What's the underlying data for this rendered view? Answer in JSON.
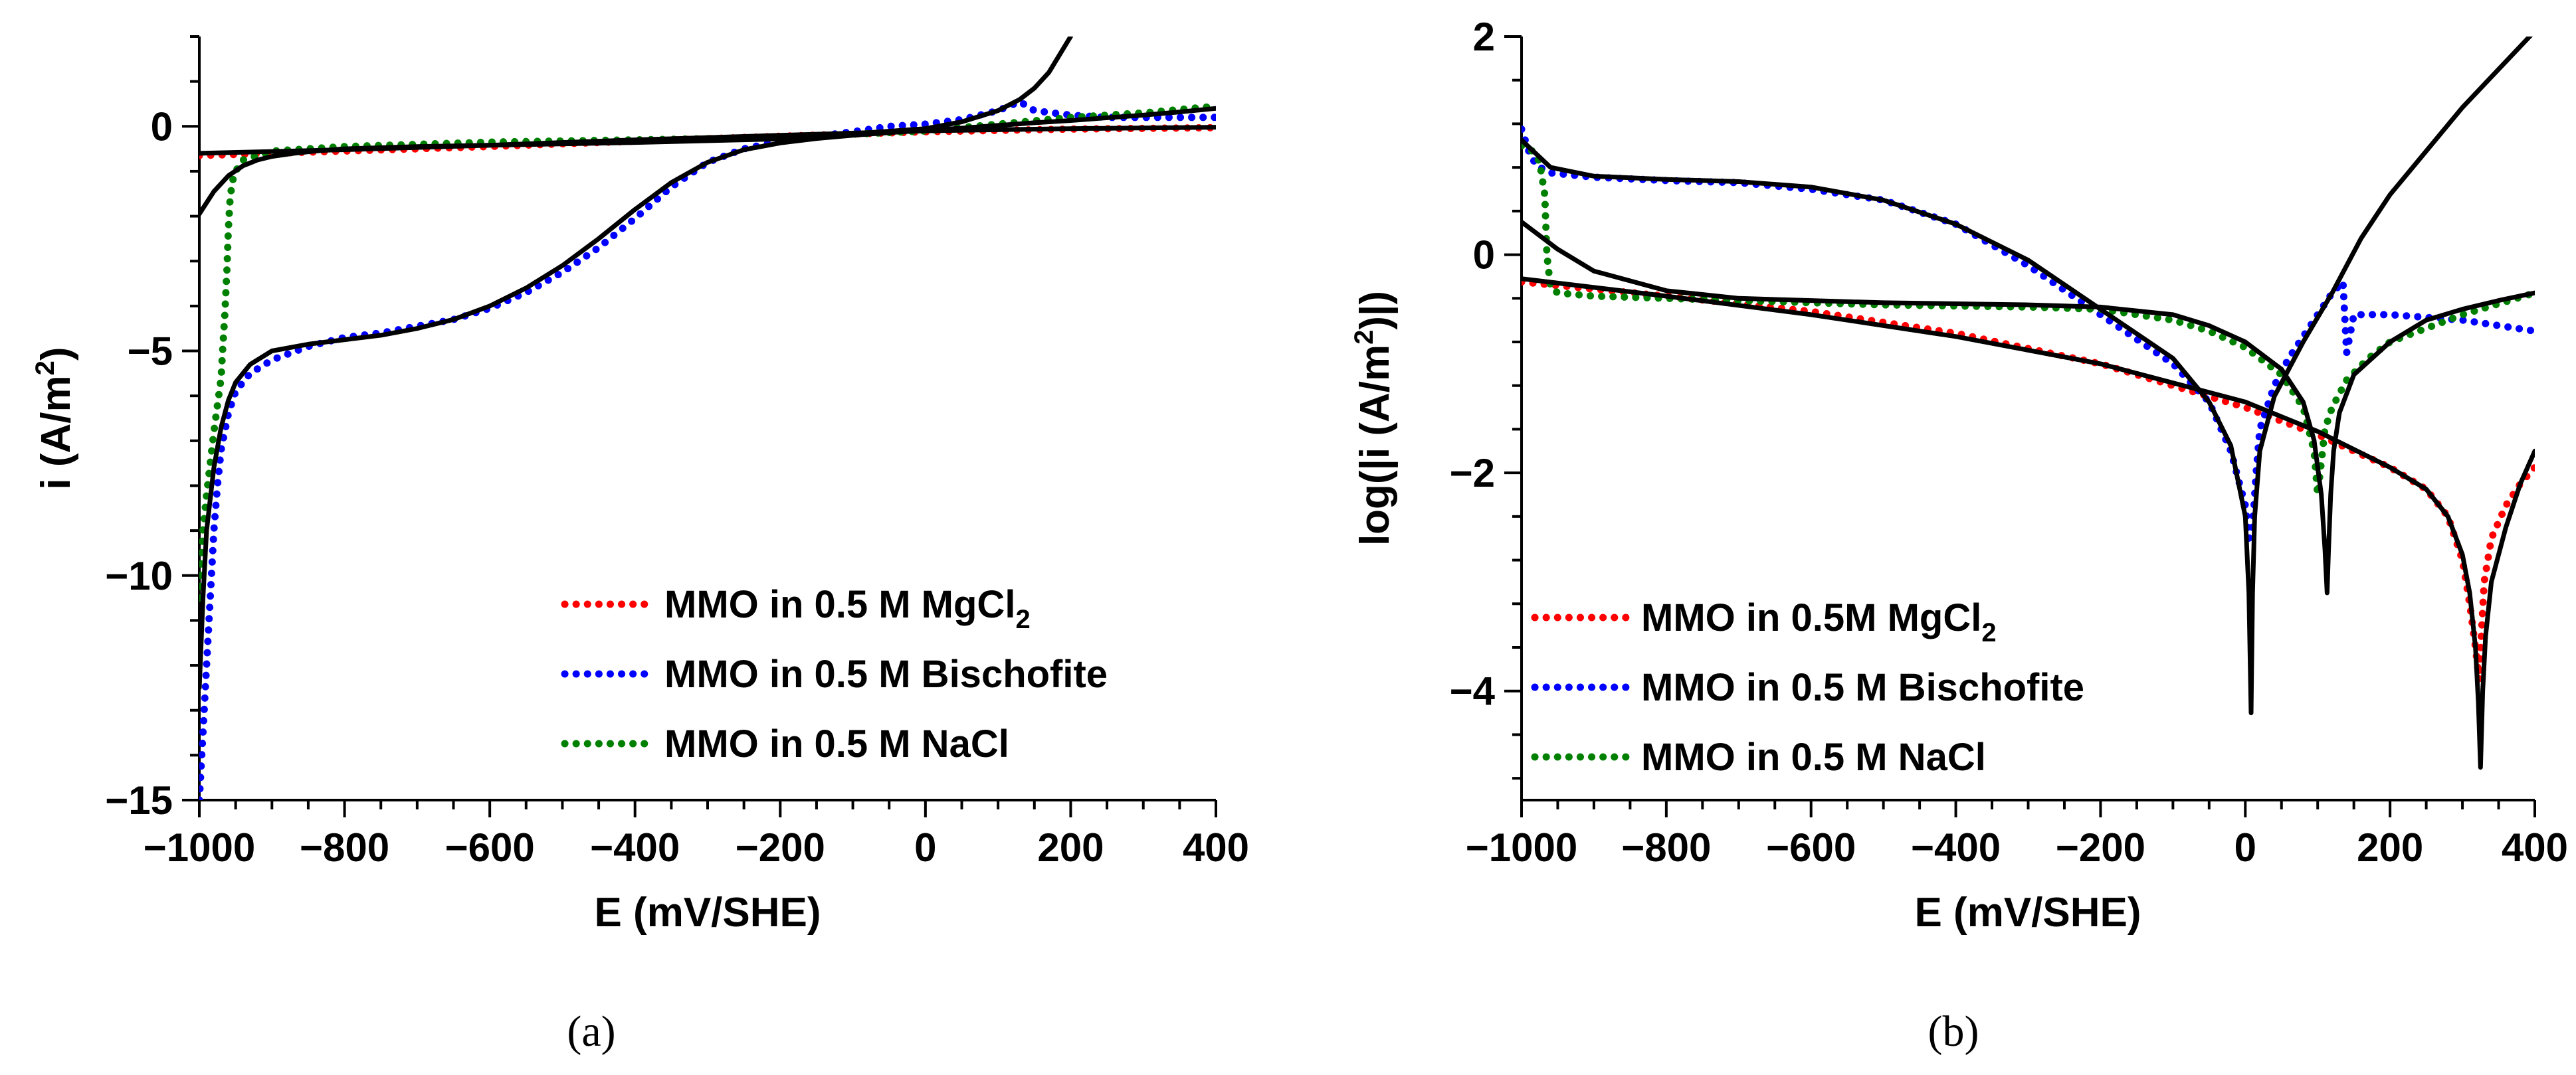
{
  "chart_data": [
    {
      "type": "line",
      "panel_label": "(a)",
      "xlabel": "E  (mV/SHE)",
      "ylabel": "i  (A/m²)",
      "ylabel_parts": {
        "main": "i  (A/m",
        "sup": "2",
        "tail": ")"
      },
      "xlim": [
        -1000,
        400
      ],
      "ylim": [
        -15,
        2
      ],
      "xticks": [
        -1000,
        -800,
        -600,
        -400,
        -200,
        0,
        200,
        400
      ],
      "xtick_labels": [
        "−1000",
        "−800",
        "−600",
        "−400",
        "−200",
        "0",
        "200",
        "400"
      ],
      "yticks": [
        -15,
        -10,
        -5,
        0
      ],
      "ytick_labels": [
        "−15",
        "−10",
        "−5",
        "0"
      ],
      "legend": [
        {
          "main": "MMO in 0.5 M MgCl",
          "sub": "2",
          "color": "#ff0000"
        },
        {
          "main": "MMO in 0.5 M Bischofite",
          "sub": "",
          "color": "#0000ff"
        },
        {
          "main": "MMO in 0.5 M NaCl",
          "sub": "",
          "color": "#008000"
        }
      ],
      "series": [
        {
          "color": "#ff0000",
          "style": "dotted",
          "x": [
            -1000,
            -800,
            -600,
            -400,
            -200,
            0,
            200,
            400
          ],
          "y": [
            -0.65,
            -0.55,
            -0.45,
            -0.33,
            -0.22,
            -0.12,
            -0.06,
            -0.03
          ]
        },
        {
          "color": "#0000ff",
          "style": "dotted",
          "x": [
            -1000,
            -995,
            -990,
            -985,
            -980,
            -975,
            -970,
            -960,
            -950,
            -930,
            -900,
            -850,
            -800,
            -750,
            -700,
            -650,
            -600,
            -550,
            -500,
            -450,
            -400,
            -350,
            -300,
            -250,
            -200,
            -150,
            -100,
            -50,
            0,
            50,
            100,
            130,
            150,
            200,
            250,
            300,
            350,
            400
          ],
          "y": [
            -15,
            -13.5,
            -12,
            -10.5,
            -9,
            -8,
            -7.2,
            -6.4,
            -5.9,
            -5.5,
            -5.2,
            -4.9,
            -4.7,
            -4.6,
            -4.45,
            -4.3,
            -4.05,
            -3.7,
            -3.25,
            -2.7,
            -2.05,
            -1.35,
            -0.8,
            -0.5,
            -0.33,
            -0.22,
            -0.12,
            0.0,
            0.05,
            0.15,
            0.35,
            0.55,
            0.35,
            0.25,
            0.2,
            0.2,
            0.2,
            0.2
          ]
        },
        {
          "color": "#008000",
          "style": "dotted",
          "x": [
            -1000,
            -995,
            -990,
            -985,
            -980,
            -975,
            -970,
            -968,
            -965,
            -962,
            -960,
            -958,
            -955,
            -950,
            -940,
            -900,
            -800,
            -600,
            -400,
            -200,
            0,
            200,
            300,
            400
          ],
          "y": [
            -10.5,
            -9.0,
            -8.2,
            -7.5,
            -6.8,
            -6.2,
            -5.6,
            -5.0,
            -4.2,
            -3.2,
            -2.3,
            -1.7,
            -1.25,
            -1.0,
            -0.75,
            -0.55,
            -0.45,
            -0.35,
            -0.3,
            -0.25,
            -0.1,
            0.2,
            0.3,
            0.45
          ]
        },
        {
          "color": "#000000",
          "style": "solid",
          "x": [
            -1000,
            -800,
            -600,
            -400,
            -200,
            0,
            200,
            400
          ],
          "y": [
            -0.6,
            -0.52,
            -0.42,
            -0.3,
            -0.2,
            -0.1,
            -0.05,
            -0.02
          ]
        },
        {
          "color": "#000000",
          "style": "solid",
          "x": [
            -1000,
            -995,
            -990,
            -980,
            -970,
            -960,
            -950,
            -930,
            -900,
            -850,
            -800,
            -750,
            -700,
            -650,
            -600,
            -550,
            -500,
            -450,
            -400,
            -350,
            -300,
            -250,
            -200,
            -150,
            -100,
            -50,
            0,
            50,
            100,
            150,
            200,
            250,
            300,
            350,
            400
          ],
          "y": [
            -12.5,
            -10.5,
            -9.0,
            -7.6,
            -6.7,
            -6.1,
            -5.7,
            -5.3,
            -5.0,
            -4.85,
            -4.75,
            -4.65,
            -4.5,
            -4.3,
            -4.0,
            -3.6,
            -3.1,
            -2.5,
            -1.85,
            -1.25,
            -0.8,
            -0.52,
            -0.37,
            -0.27,
            -0.2,
            -0.14,
            -0.09,
            -0.04,
            0.02,
            0.08,
            0.13,
            0.19,
            0.25,
            0.32,
            0.4
          ]
        },
        {
          "color": "#000000",
          "style": "solid",
          "x": [
            -1000,
            -980,
            -960,
            -940,
            -920,
            -900,
            -870,
            -840,
            -800,
            -700,
            -600,
            -400,
            -200,
            0,
            50,
            100,
            130,
            150,
            170,
            185,
            200
          ],
          "y": [
            -1.95,
            -1.45,
            -1.1,
            -0.88,
            -0.75,
            -0.67,
            -0.6,
            -0.55,
            -0.5,
            -0.45,
            -0.42,
            -0.36,
            -0.28,
            -0.05,
            0.1,
            0.35,
            0.6,
            0.85,
            1.2,
            1.6,
            2.0
          ]
        }
      ]
    },
    {
      "type": "line",
      "panel_label": "(b)",
      "xlabel": "E  (mV/SHE)",
      "ylabel": "log(|i  (A/m²)|)",
      "ylabel_parts": {
        "main": "log(|i  (A/m",
        "sup": "2",
        "tail": ")|)"
      },
      "xlim": [
        -1000,
        400
      ],
      "ylim": [
        -5,
        2
      ],
      "xticks": [
        -1000,
        -800,
        -600,
        -400,
        -200,
        0,
        200,
        400
      ],
      "xtick_labels": [
        "−1000",
        "−800",
        "−600",
        "−400",
        "−200",
        "0",
        "200",
        "400"
      ],
      "yticks": [
        -4,
        -2,
        0,
        2
      ],
      "ytick_labels": [
        "−4",
        "−2",
        "0",
        "2"
      ],
      "legend": [
        {
          "main": "MMO in 0.5M MgCl",
          "sub": "2",
          "color": "#ff0000"
        },
        {
          "main": "MMO in 0.5 M Bischofite",
          "sub": "",
          "color": "#0000ff"
        },
        {
          "main": "MMO in 0.5 M NaCl",
          "sub": "",
          "color": "#008000"
        }
      ],
      "series": [
        {
          "color": "#ff0000",
          "style": "dotted",
          "x": [
            -1000,
            -800,
            -600,
            -400,
            -200,
            -100,
            0,
            100,
            200,
            250,
            280,
            300,
            310,
            318,
            323,
            326,
            330,
            340,
            360,
            380,
            400
          ],
          "y": [
            -0.25,
            -0.38,
            -0.52,
            -0.72,
            -1.0,
            -1.2,
            -1.4,
            -1.65,
            -1.95,
            -2.15,
            -2.4,
            -2.8,
            -3.2,
            -3.6,
            -3.9,
            -3.5,
            -3.0,
            -2.6,
            -2.3,
            -2.1,
            -1.95
          ]
        },
        {
          "color": "#0000ff",
          "style": "dotted",
          "x": [
            -1000,
            -990,
            -980,
            -960,
            -900,
            -800,
            -700,
            -600,
            -500,
            -400,
            -300,
            -200,
            -100,
            -50,
            -20,
            0,
            5,
            10,
            15,
            20,
            40,
            60,
            80,
            100,
            120,
            135,
            140,
            150,
            200,
            300,
            400
          ],
          "y": [
            1.15,
            0.95,
            0.82,
            0.75,
            0.71,
            0.68,
            0.66,
            0.6,
            0.5,
            0.28,
            -0.1,
            -0.55,
            -1.0,
            -1.35,
            -1.8,
            -2.3,
            -2.6,
            -2.5,
            -2.0,
            -1.6,
            -1.2,
            -0.95,
            -0.75,
            -0.55,
            -0.35,
            -0.25,
            -0.9,
            -0.55,
            -0.55,
            -0.6,
            -0.7
          ]
        },
        {
          "color": "#008000",
          "style": "dotted",
          "x": [
            -1000,
            -985,
            -975,
            -968,
            -965,
            -960,
            -950,
            -900,
            -800,
            -700,
            -600,
            -500,
            -400,
            -300,
            -200,
            -100,
            -50,
            0,
            50,
            80,
            95,
            100,
            105,
            110,
            120,
            140,
            170,
            200,
            300,
            400
          ],
          "y": [
            1.0,
            0.95,
            0.85,
            0.55,
            0.0,
            -0.3,
            -0.35,
            -0.38,
            -0.4,
            -0.42,
            -0.44,
            -0.46,
            -0.47,
            -0.48,
            -0.5,
            -0.6,
            -0.7,
            -0.85,
            -1.1,
            -1.4,
            -1.8,
            -2.2,
            -1.9,
            -1.6,
            -1.4,
            -1.15,
            -0.95,
            -0.8,
            -0.55,
            -0.35
          ]
        },
        {
          "color": "#000000",
          "style": "solid",
          "x": [
            -1000,
            -800,
            -600,
            -400,
            -200,
            0,
            100,
            200,
            250,
            280,
            300,
            310,
            318,
            322,
            325,
            328,
            332,
            340,
            360,
            380,
            400
          ],
          "y": [
            -0.22,
            -0.38,
            -0.55,
            -0.75,
            -1.0,
            -1.35,
            -1.62,
            -1.95,
            -2.15,
            -2.4,
            -2.75,
            -3.1,
            -3.6,
            -4.1,
            -4.7,
            -4.0,
            -3.5,
            -3.0,
            -2.5,
            -2.1,
            -1.8
          ]
        },
        {
          "color": "#000000",
          "style": "solid",
          "x": [
            -1000,
            -960,
            -900,
            -800,
            -700,
            -600,
            -500,
            -400,
            -300,
            -200,
            -100,
            -50,
            -20,
            0,
            5,
            8,
            10,
            13,
            20,
            40,
            80,
            120,
            160,
            200,
            250,
            300,
            350,
            400
          ],
          "y": [
            1.05,
            0.8,
            0.72,
            0.69,
            0.67,
            0.62,
            0.5,
            0.28,
            -0.05,
            -0.5,
            -0.95,
            -1.35,
            -1.75,
            -2.4,
            -3.1,
            -4.2,
            -3.1,
            -2.4,
            -1.8,
            -1.3,
            -0.8,
            -0.35,
            0.15,
            0.55,
            0.95,
            1.35,
            1.7,
            2.05
          ]
        },
        {
          "color": "#000000",
          "style": "solid",
          "x": [
            -1000,
            -950,
            -900,
            -800,
            -700,
            -600,
            -500,
            -400,
            -300,
            -200,
            -100,
            -50,
            0,
            50,
            80,
            95,
            105,
            110,
            113,
            115,
            118,
            122,
            130,
            150,
            200,
            250,
            300,
            350,
            400
          ],
          "y": [
            0.3,
            0.05,
            -0.15,
            -0.33,
            -0.4,
            -0.42,
            -0.44,
            -0.45,
            -0.46,
            -0.48,
            -0.55,
            -0.65,
            -0.8,
            -1.05,
            -1.35,
            -1.7,
            -2.2,
            -2.7,
            -3.1,
            -2.7,
            -2.2,
            -1.8,
            -1.45,
            -1.1,
            -0.8,
            -0.6,
            -0.5,
            -0.42,
            -0.35
          ]
        }
      ]
    }
  ]
}
